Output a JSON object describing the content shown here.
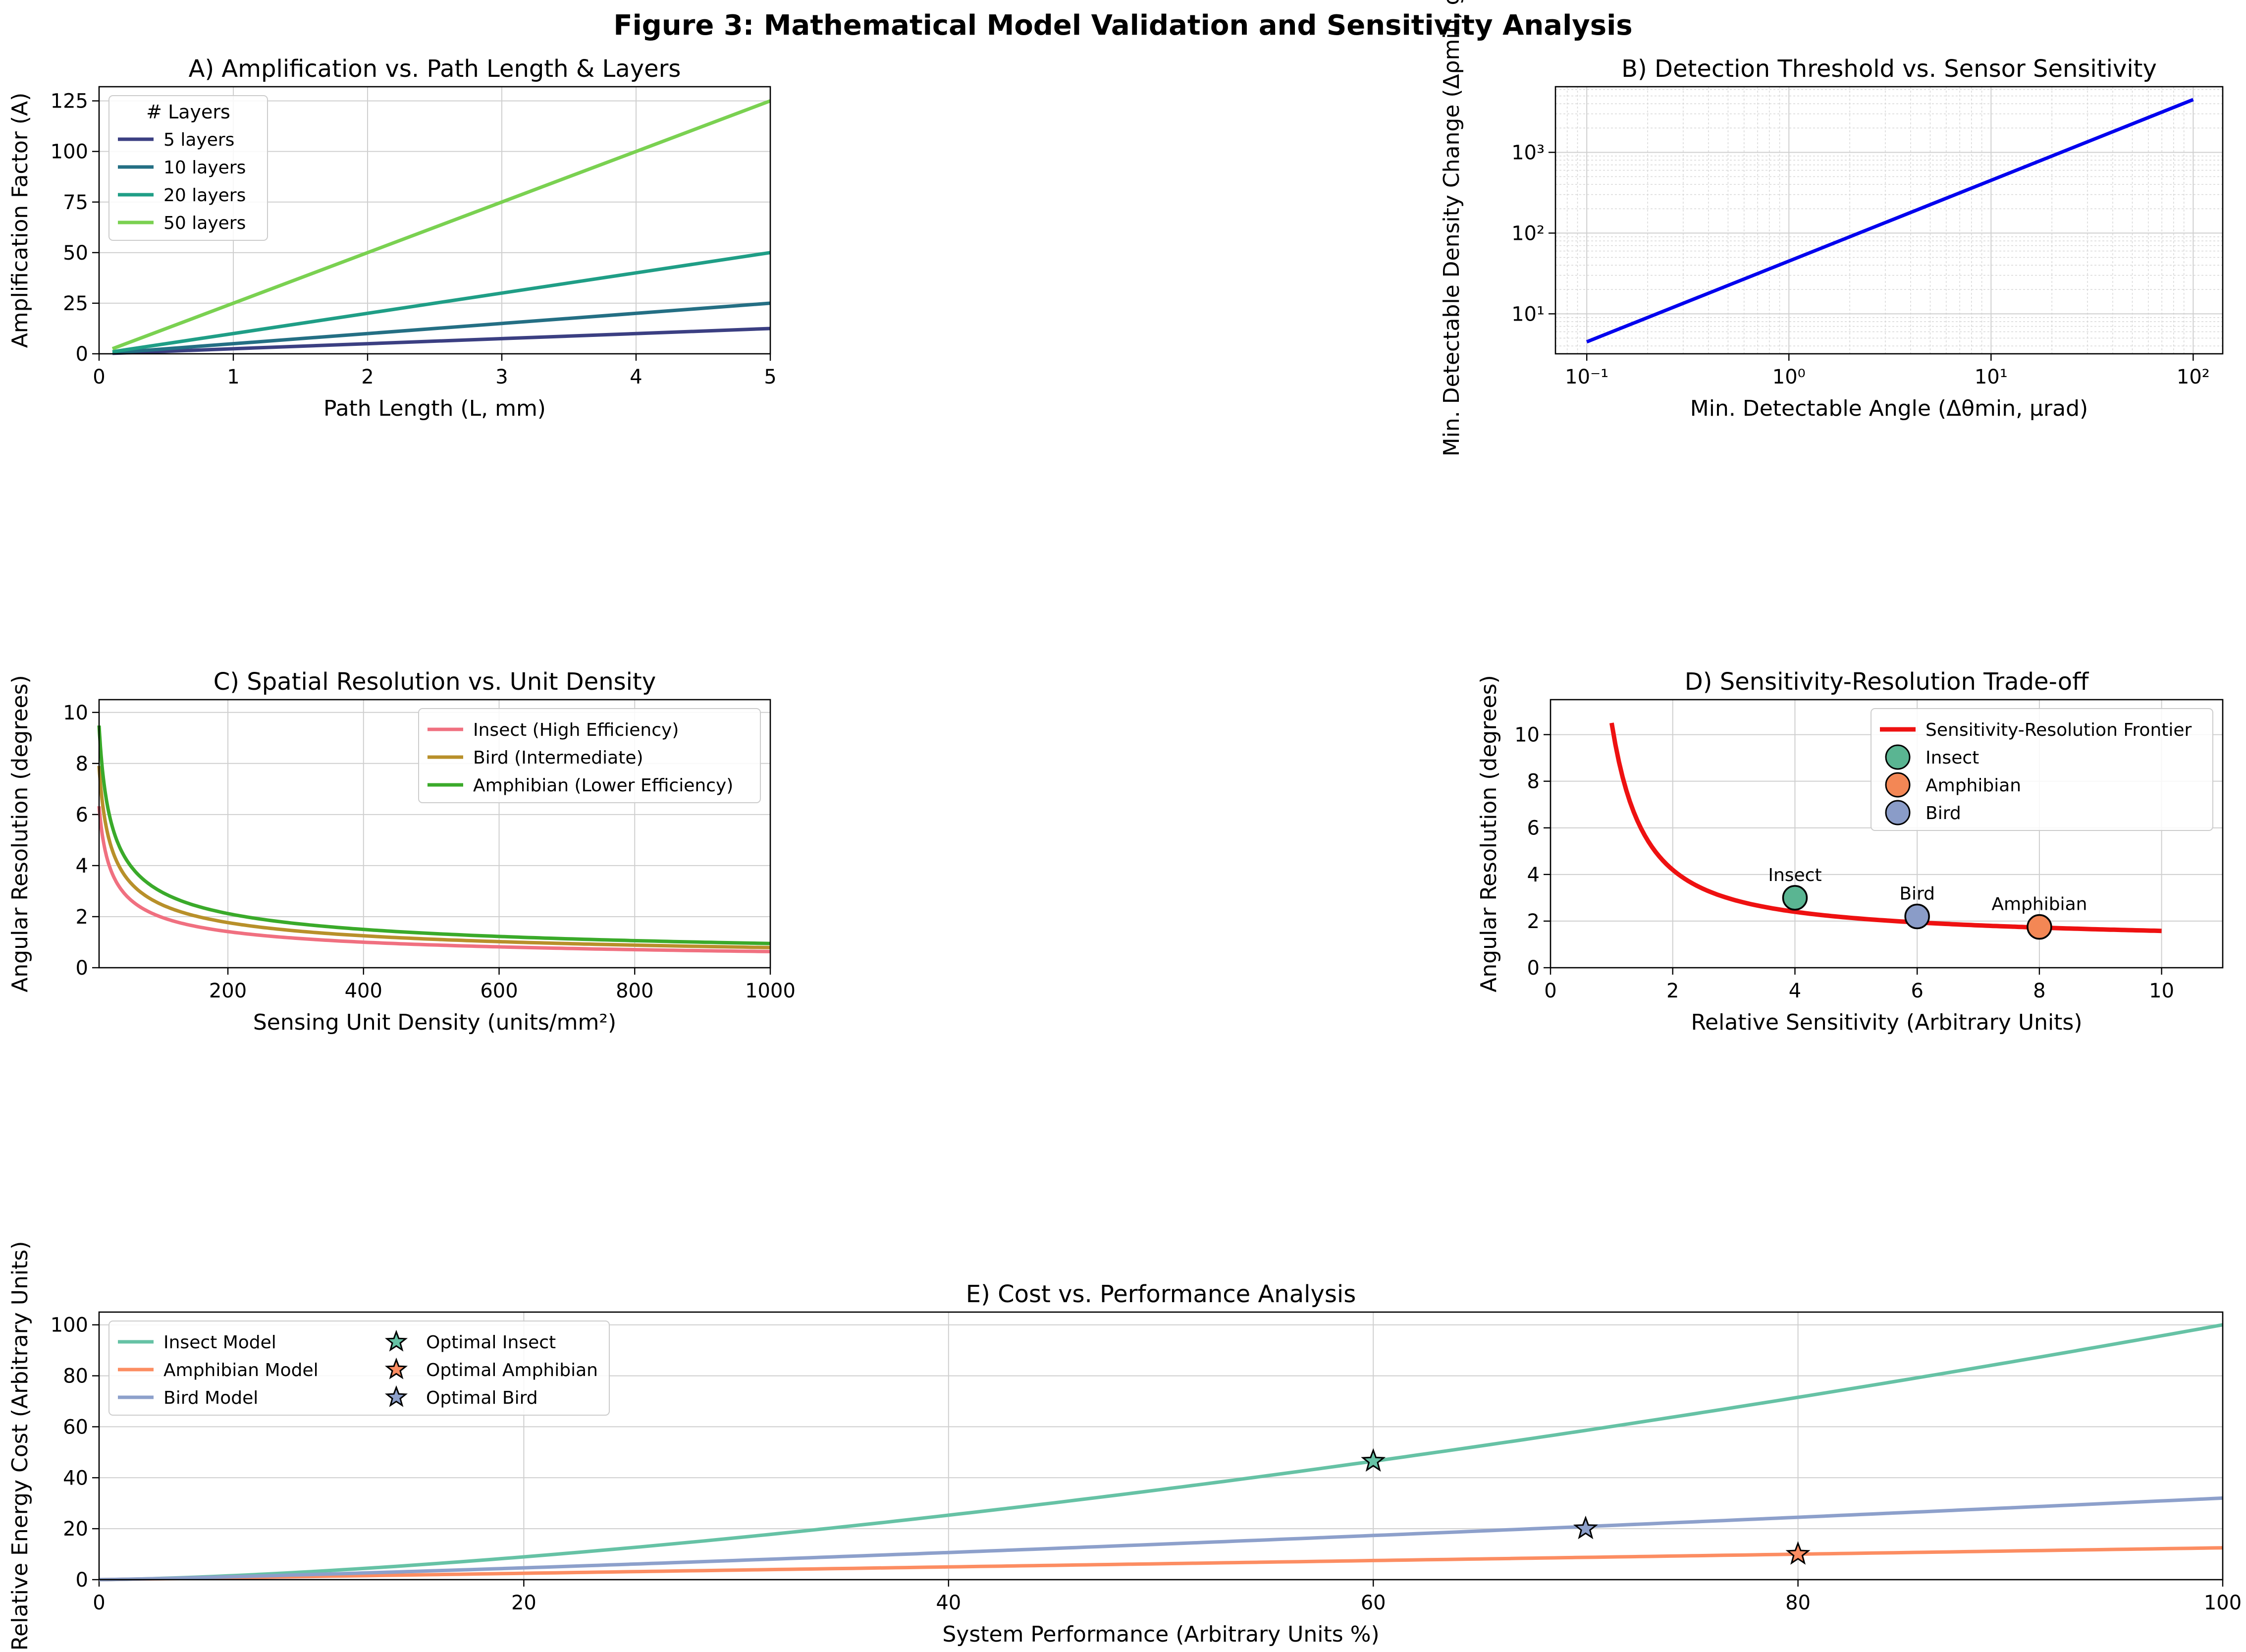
{
  "figure_title": "Figure 3: Mathematical Model Validation and Sensitivity Analysis",
  "chart_data": [
    {
      "id": "A",
      "type": "line",
      "title": "A) Amplification vs. Path Length & Layers",
      "xlabel": "Path Length (L, mm)",
      "ylabel": "Amplification Factor (A)",
      "xlim": [
        0,
        5
      ],
      "ylim": [
        0,
        132
      ],
      "xticks": [
        0,
        1,
        2,
        3,
        4,
        5
      ],
      "yticks": [
        0,
        25,
        50,
        75,
        100,
        125
      ],
      "grid": true,
      "legend_title": "# Layers",
      "legend_position": "upper-left",
      "series": [
        {
          "name": "5 layers",
          "color": "#3b3f82",
          "x": [
            0.1,
            5
          ],
          "y": [
            0.25,
            12.5
          ]
        },
        {
          "name": "10 layers",
          "color": "#246f84",
          "x": [
            0.1,
            5
          ],
          "y": [
            0.5,
            25
          ]
        },
        {
          "name": "20 layers",
          "color": "#1f9e86",
          "x": [
            0.1,
            5
          ],
          "y": [
            1,
            50
          ]
        },
        {
          "name": "50 layers",
          "color": "#7ad151",
          "x": [
            0.1,
            5
          ],
          "y": [
            2.5,
            125
          ]
        }
      ]
    },
    {
      "id": "B",
      "type": "line",
      "title": "B) Detection Threshold vs. Sensor Sensitivity",
      "xlabel": "Min. Detectable Angle (Δθmin, μrad)",
      "ylabel": "Min. Detectable Density Change (Δρmin, g/",
      "xscale": "log",
      "yscale": "log",
      "xlim": [
        0.07,
        140
      ],
      "ylim": [
        3.2,
        6500
      ],
      "xticks": [
        0.1,
        1,
        10,
        100
      ],
      "xticklabels": [
        "10⁻¹",
        "10⁰",
        "10¹",
        "10²"
      ],
      "yticks": [
        10,
        100,
        1000
      ],
      "yticklabels": [
        "10¹",
        "10²",
        "10³"
      ],
      "grid": true,
      "series": [
        {
          "name": "",
          "color": "#0000ee",
          "x": [
            0.1,
            100
          ],
          "y": [
            4.5,
            4500
          ]
        }
      ]
    },
    {
      "id": "C",
      "type": "line",
      "title": "C) Spatial Resolution vs. Unit Density",
      "xlabel": "Sensing Unit Density (units/mm²)",
      "ylabel": "Angular Resolution (degrees)",
      "xlim": [
        10,
        1000
      ],
      "ylim": [
        0,
        10.5
      ],
      "xticks": [
        200,
        400,
        600,
        800,
        1000
      ],
      "yticks": [
        0,
        2,
        4,
        6,
        8,
        10
      ],
      "grid": true,
      "legend_position": "upper-right",
      "series": [
        {
          "name": "Insect (High Efficiency)",
          "color": "#f07080",
          "k": 20
        },
        {
          "name": "Bird (Intermediate)",
          "color": "#b8902a",
          "k": 25
        },
        {
          "name": "Amphibian (Lower Efficiency)",
          "color": "#3aaa2a",
          "k": 30
        }
      ]
    },
    {
      "id": "D",
      "type": "line",
      "title": "D) Sensitivity-Resolution Trade-off",
      "xlabel": "Relative Sensitivity (Arbitrary Units)",
      "ylabel": "Angular Resolution (degrees)",
      "xlim": [
        0,
        11
      ],
      "ylim": [
        0,
        11.5
      ],
      "xticks": [
        0,
        2,
        4,
        6,
        8,
        10
      ],
      "yticks": [
        0,
        2,
        4,
        6,
        8,
        10
      ],
      "grid": true,
      "legend_position": "upper-right",
      "frontier": {
        "name": "Sensitivity-Resolution Frontier",
        "color": "#ee1111",
        "x_range": [
          1,
          10
        ]
      },
      "points": [
        {
          "name": "Insect",
          "label": "Insect",
          "x": 4,
          "y": 3.0,
          "color": "#5ab592"
        },
        {
          "name": "Amphibian",
          "label": "Amphibian",
          "x": 8,
          "y": 1.75,
          "color": "#f38755"
        },
        {
          "name": "Bird",
          "label": "Bird",
          "x": 6,
          "y": 2.2,
          "color": "#8a9cc8"
        }
      ]
    },
    {
      "id": "E",
      "type": "line",
      "title": "E) Cost vs. Performance Analysis",
      "xlabel": "System Performance (Arbitrary Units %)",
      "ylabel": "Relative Energy Cost (Arbitrary Units)",
      "xlim": [
        0,
        100
      ],
      "ylim": [
        0,
        105
      ],
      "xticks": [
        0,
        20,
        40,
        60,
        80,
        100
      ],
      "yticks": [
        0,
        20,
        40,
        60,
        80,
        100
      ],
      "grid": true,
      "legend_position": "upper-left",
      "series": [
        {
          "name": "Insect Model",
          "color": "#66c2a5",
          "max": 100,
          "exponent": 1.5
        },
        {
          "name": "Amphibian Model",
          "color": "#fc8d62",
          "max": 12.5,
          "exponent": 1.0
        },
        {
          "name": "Bird Model",
          "color": "#8da0cb",
          "max": 32,
          "exponent": 1.2
        }
      ],
      "optima": [
        {
          "name": "Optimal Insect",
          "x": 60,
          "y": 46.5,
          "color": "#66c2a5"
        },
        {
          "name": "Optimal Amphibian",
          "x": 80,
          "y": 10,
          "color": "#fc8d62"
        },
        {
          "name": "Optimal Bird",
          "x": 70,
          "y": 20,
          "color": "#8da0cb"
        }
      ]
    }
  ]
}
